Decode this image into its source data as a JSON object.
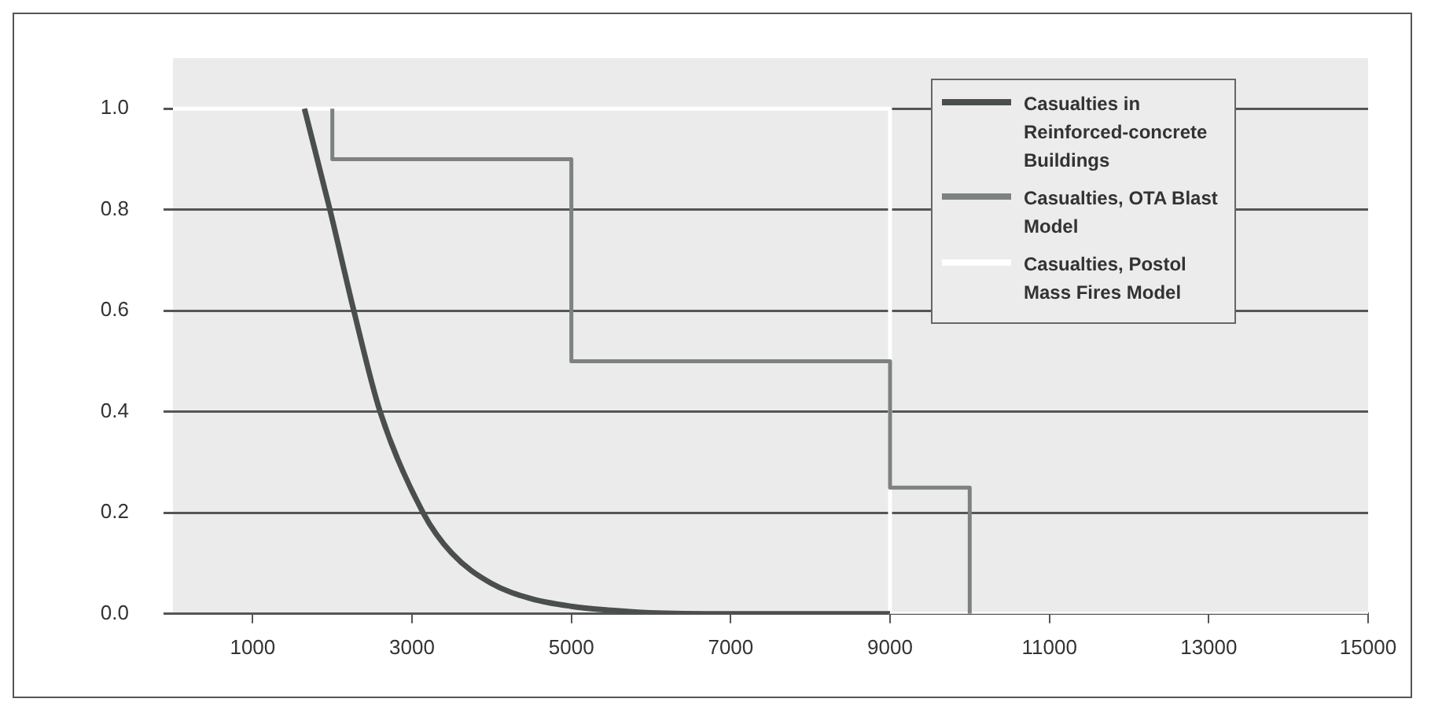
{
  "chart_data": {
    "type": "line",
    "xlim": [
      0,
      15000
    ],
    "xticks": [
      1000,
      3000,
      5000,
      7000,
      9000,
      11000,
      13000,
      15000
    ],
    "ylim": [
      0,
      1.1
    ],
    "yticks": [
      {
        "value": 0,
        "label": "0.0"
      },
      {
        "value": 0.2,
        "label": "0.2"
      },
      {
        "value": 0.4,
        "label": "0.4"
      },
      {
        "value": 0.6,
        "label": "0.6"
      },
      {
        "value": 0.8,
        "label": "0.8"
      },
      {
        "value": 1,
        "label": "1.0"
      }
    ],
    "grid": "y",
    "legend": "top right",
    "marker": "none",
    "series": [
      {
        "name": "Casualties in Reinforced-concrete Buildings",
        "color": "#4a4f4c",
        "x": [
          1650,
          1970,
          2270,
          2600,
          3140,
          3500,
          4000,
          4500,
          5000,
          5500,
          6000,
          7000,
          9000
        ],
        "values": [
          1,
          0.8,
          0.6,
          0.4,
          0.2,
          0.12,
          0.06,
          0.03,
          0.015,
          0.007,
          0.002,
          0,
          0
        ]
      },
      {
        "name": "Casualties, OTA Blast Model",
        "color": "#7d827f",
        "x": [
          2000,
          2000,
          5000,
          5000,
          9000,
          9000,
          10000,
          10000
        ],
        "values": [
          1,
          0.9,
          0.9,
          0.5,
          0.5,
          0.25,
          0.25,
          0
        ]
      },
      {
        "name": "Casualties, Postol Mass Fires Model",
        "color": "#ffffff",
        "x": [
          0,
          9000,
          9000,
          15000
        ],
        "values": [
          1,
          1,
          0,
          0
        ]
      }
    ]
  }
}
